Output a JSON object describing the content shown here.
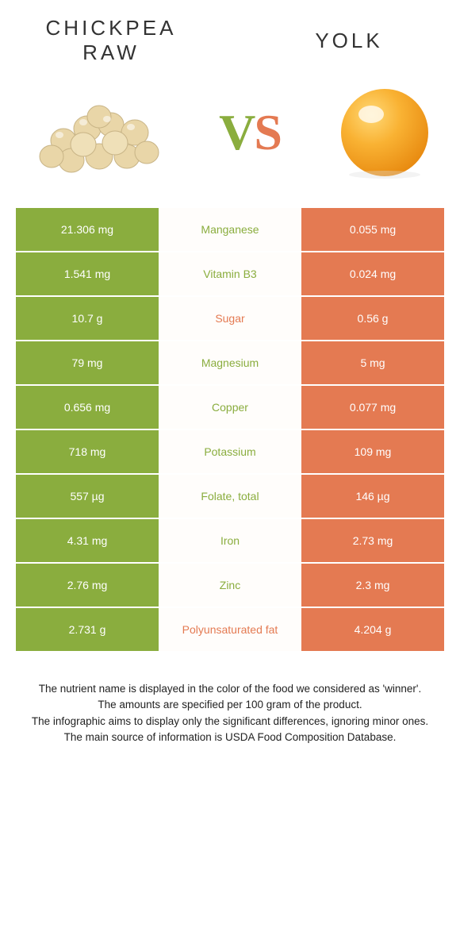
{
  "colors": {
    "green": "#8aad3e",
    "orange": "#e47a52",
    "midBg": "#fffdfb",
    "white": "#ffffff",
    "text": "#333333",
    "footText": "#222222"
  },
  "left": {
    "title": "CHICKPEA\nRAW"
  },
  "right": {
    "title": "YOLK"
  },
  "vs": {
    "v": "V",
    "s": "S"
  },
  "rows": [
    {
      "left": "21.306 mg",
      "name": "Manganese",
      "right": "0.055 mg",
      "winner": "left"
    },
    {
      "left": "1.541 mg",
      "name": "Vitamin B3",
      "right": "0.024 mg",
      "winner": "left"
    },
    {
      "left": "10.7 g",
      "name": "Sugar",
      "right": "0.56 g",
      "winner": "right"
    },
    {
      "left": "79 mg",
      "name": "Magnesium",
      "right": "5 mg",
      "winner": "left"
    },
    {
      "left": "0.656 mg",
      "name": "Copper",
      "right": "0.077 mg",
      "winner": "left"
    },
    {
      "left": "718 mg",
      "name": "Potassium",
      "right": "109 mg",
      "winner": "left"
    },
    {
      "left": "557 µg",
      "name": "Folate, total",
      "right": "146 µg",
      "winner": "left"
    },
    {
      "left": "4.31 mg",
      "name": "Iron",
      "right": "2.73 mg",
      "winner": "left"
    },
    {
      "left": "2.76 mg",
      "name": "Zinc",
      "right": "2.3 mg",
      "winner": "left"
    },
    {
      "left": "2.731 g",
      "name": "Polyunsaturated fat",
      "right": "4.204 g",
      "winner": "right"
    }
  ],
  "footnotes": [
    "The nutrient name is displayed in the color of the food we considered as 'winner'.",
    "The amounts are specified per 100 gram of the product.",
    "The infographic aims to display only the significant differences, ignoring minor ones.",
    "The main source of information is USDA Food Composition Database."
  ]
}
